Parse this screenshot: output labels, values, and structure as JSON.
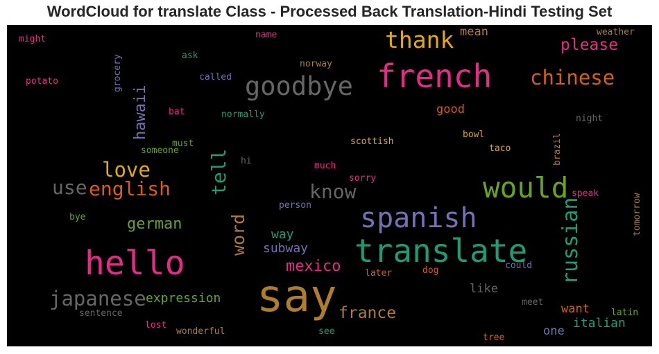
{
  "title": "WordCloud for translate Class - Processed Back Translation-Hindi Testing Set",
  "words": [
    {
      "text": "say",
      "color": "#b07d2b"
    },
    {
      "text": "hello",
      "color": "#e7298a"
    },
    {
      "text": "translate",
      "color": "#1b9e77"
    },
    {
      "text": "french",
      "color": "#e7298a"
    },
    {
      "text": "would",
      "color": "#66a61e"
    },
    {
      "text": "spanish",
      "color": "#7570b3"
    },
    {
      "text": "goodbye",
      "color": "#666666"
    },
    {
      "text": "russian",
      "color": "#1b9e77"
    },
    {
      "text": "thank",
      "color": "#e6ab02"
    },
    {
      "text": "english",
      "color": "#d95f02"
    },
    {
      "text": "love",
      "color": "#e6ab02"
    },
    {
      "text": "japanese",
      "color": "#666666"
    },
    {
      "text": "chinese",
      "color": "#d95f02"
    },
    {
      "text": "know",
      "color": "#666666"
    },
    {
      "text": "use",
      "color": "#666666"
    },
    {
      "text": "tell",
      "color": "#1b9e77"
    },
    {
      "text": "word",
      "color": "#b07d2b"
    },
    {
      "text": "hawaii",
      "color": "#7570b3"
    },
    {
      "text": "german",
      "color": "#66a61e"
    },
    {
      "text": "france",
      "color": "#b07d2b"
    },
    {
      "text": "mexico",
      "color": "#e7298a"
    },
    {
      "text": "please",
      "color": "#e7298a"
    },
    {
      "text": "expression",
      "color": "#66a61e"
    },
    {
      "text": "italian",
      "color": "#1b9e77"
    },
    {
      "text": "subway",
      "color": "#7570b3"
    },
    {
      "text": "way",
      "color": "#1b9e77"
    },
    {
      "text": "mean",
      "color": "#b07d2b"
    },
    {
      "text": "good",
      "color": "#d95f02"
    },
    {
      "text": "like",
      "color": "#666666"
    },
    {
      "text": "want",
      "color": "#d95f02"
    },
    {
      "text": "one",
      "color": "#7570b3"
    },
    {
      "text": "potato",
      "color": "#e7298a"
    },
    {
      "text": "might",
      "color": "#e7298a"
    },
    {
      "text": "name",
      "color": "#e7298a"
    },
    {
      "text": "ask",
      "color": "#1b9e77"
    },
    {
      "text": "grocery",
      "color": "#7570b3"
    },
    {
      "text": "called",
      "color": "#7570b3"
    },
    {
      "text": "norway",
      "color": "#b07d2b"
    },
    {
      "text": "weather",
      "color": "#b07d2b"
    },
    {
      "text": "bat",
      "color": "#e7298a"
    },
    {
      "text": "normally",
      "color": "#1b9e77"
    },
    {
      "text": "night",
      "color": "#666666"
    },
    {
      "text": "must",
      "color": "#66a61e"
    },
    {
      "text": "someone",
      "color": "#66a61e"
    },
    {
      "text": "bowl",
      "color": "#e6ab02"
    },
    {
      "text": "scottish",
      "color": "#e6ab02"
    },
    {
      "text": "taco",
      "color": "#e6ab02"
    },
    {
      "text": "brazil",
      "color": "#b07d2b"
    },
    {
      "text": "hi",
      "color": "#666666"
    },
    {
      "text": "much",
      "color": "#e7298a"
    },
    {
      "text": "sorry",
      "color": "#e7298a"
    },
    {
      "text": "speak",
      "color": "#e7298a"
    },
    {
      "text": "person",
      "color": "#7570b3"
    },
    {
      "text": "bye",
      "color": "#66a61e"
    },
    {
      "text": "tomorrow",
      "color": "#b07d2b"
    },
    {
      "text": "could",
      "color": "#7570b3"
    },
    {
      "text": "dog",
      "color": "#d95f02"
    },
    {
      "text": "later",
      "color": "#d95f02"
    },
    {
      "text": "meet",
      "color": "#666666"
    },
    {
      "text": "latin",
      "color": "#66a61e"
    },
    {
      "text": "sentence",
      "color": "#666666"
    },
    {
      "text": "lost",
      "color": "#e7298a"
    },
    {
      "text": "wonderful",
      "color": "#b07d2b"
    },
    {
      "text": "see",
      "color": "#1b9e77"
    },
    {
      "text": "tree",
      "color": "#d95f02"
    }
  ]
}
